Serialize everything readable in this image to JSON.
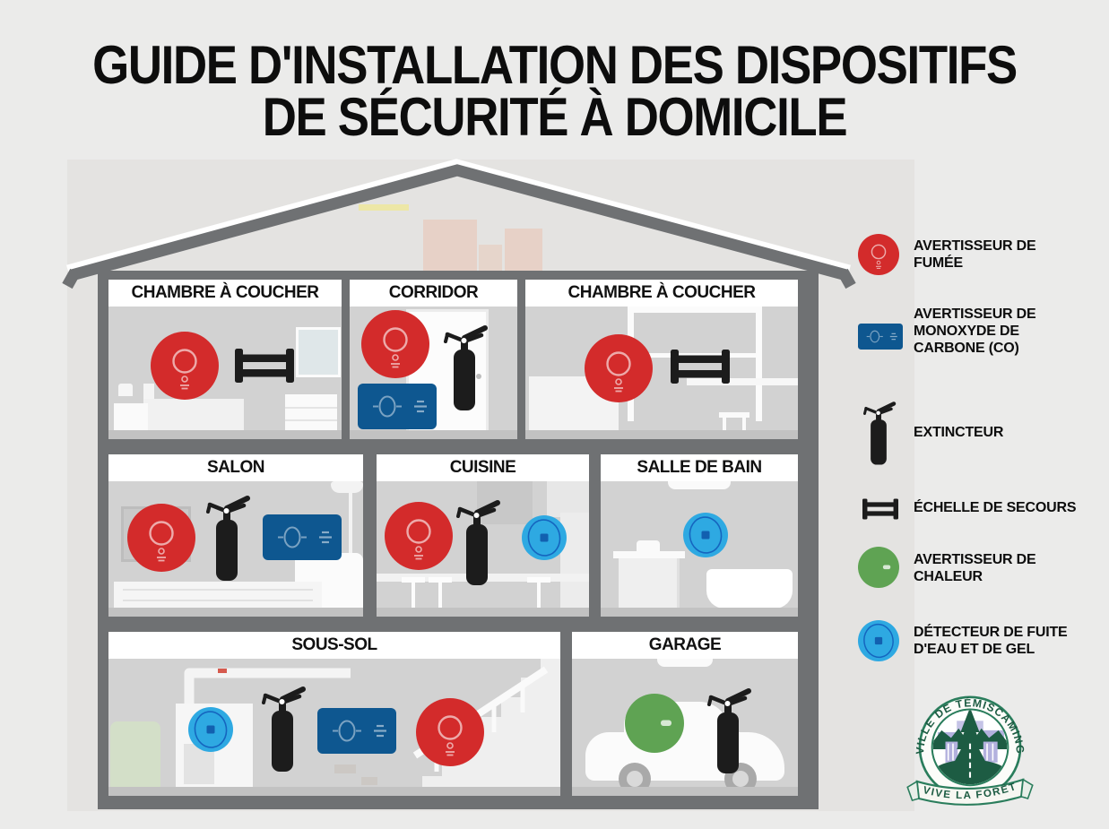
{
  "title": {
    "line1": "GUIDE D'INSTALLATION DES DISPOSITIFS",
    "line2": "DE SÉCURITÉ À DOMICILE"
  },
  "house": {
    "rooms": [
      {
        "label": "CHAMBRE À COUCHER",
        "devices": [
          "avertisseur de fumée",
          "échelle de secours"
        ]
      },
      {
        "label": "CORRIDOR",
        "devices": [
          "avertisseur de fumée",
          "avertisseur de monoxyde de carbone",
          "extincteur"
        ]
      },
      {
        "label": "CHAMBRE À COUCHER",
        "devices": [
          "avertisseur de fumée",
          "échelle de secours"
        ]
      },
      {
        "label": "SALON",
        "devices": [
          "avertisseur de fumée",
          "extincteur",
          "avertisseur de monoxyde de carbone"
        ]
      },
      {
        "label": "CUISINE",
        "devices": [
          "avertisseur de fumée",
          "extincteur",
          "détecteur de fuite d'eau et de gel"
        ]
      },
      {
        "label": "SALLE DE BAIN",
        "devices": [
          "détecteur de fuite d'eau et de gel"
        ]
      },
      {
        "label": "SOUS-SOL",
        "devices": [
          "détecteur de fuite d'eau et de gel",
          "extincteur",
          "avertisseur de monoxyde de carbone",
          "avertisseur de fumée"
        ]
      },
      {
        "label": "GARAGE",
        "devices": [
          "avertisseur de chaleur",
          "extincteur"
        ]
      }
    ]
  },
  "legend": [
    {
      "icon": "smoke-detector",
      "label": "AVERTISSEUR DE\nFUMÉE"
    },
    {
      "icon": "co-detector",
      "label": "AVERTISSEUR DE\nMONOXYDE DE\nCARBONE (CO)"
    },
    {
      "icon": "extinguisher",
      "label": "EXTINCTEUR"
    },
    {
      "icon": "escape-ladder",
      "label": "ÉCHELLE DE SECOURS"
    },
    {
      "icon": "heat-detector",
      "label": "AVERTISSEUR DE\nCHALEUR"
    },
    {
      "icon": "water-freeze-detector",
      "label": "DÉTECTEUR DE FUITE\nD'EAU ET DE GEL"
    }
  ],
  "logo": {
    "arc_text": "VILLE DE TÉMISCAMING",
    "banner_text": "VIVE LA FORÊT"
  },
  "colors": {
    "smoke_red": "#d32b2b",
    "co_blue": "#0e5790",
    "water_blue": "#2ea9e2",
    "heat_green": "#5fa353",
    "wall_gray": "#6f7173"
  }
}
